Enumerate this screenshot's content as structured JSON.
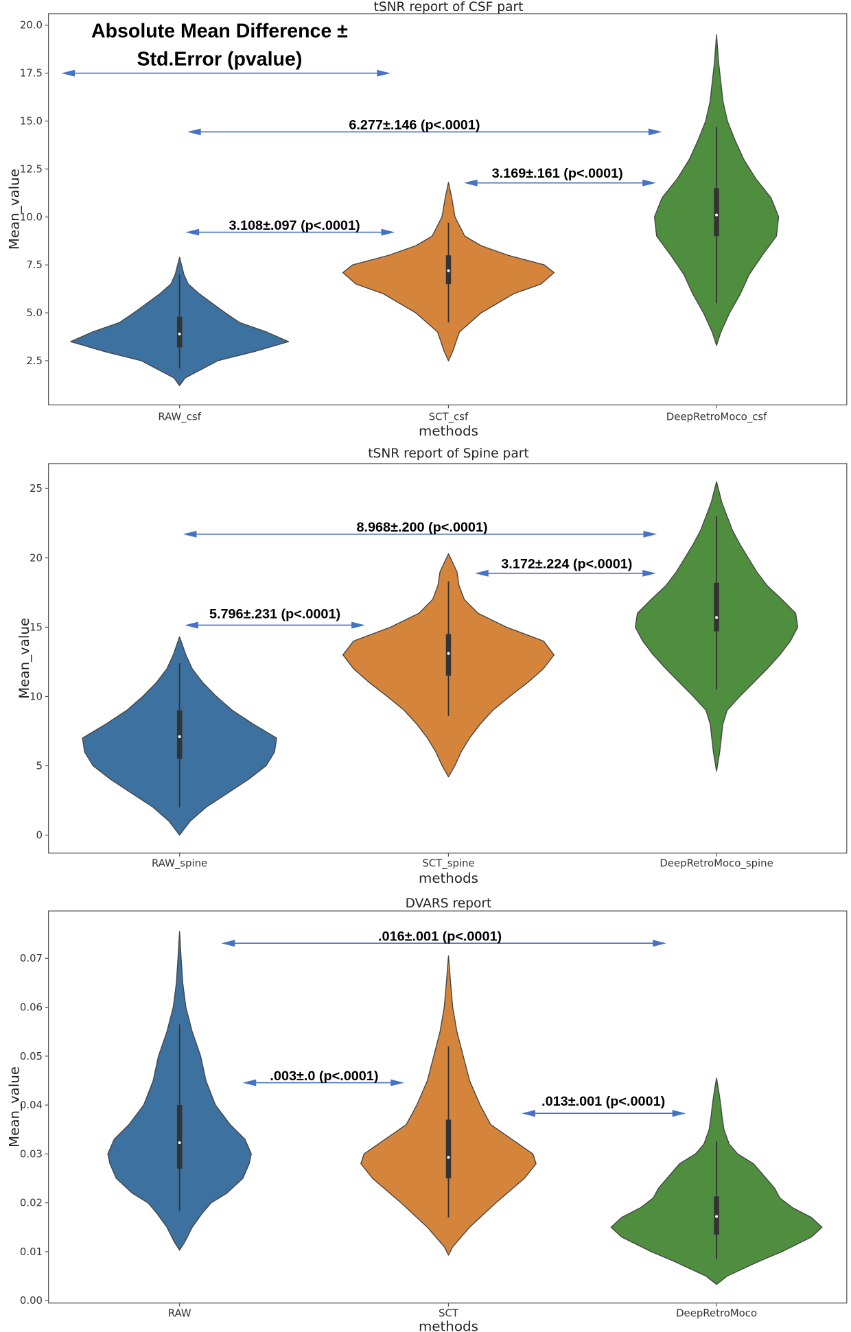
{
  "header": {
    "line1": "Absolute Mean Difference ±",
    "line2": "Std.Error (pvalue)"
  },
  "colors": {
    "violins": [
      "#3d71a0",
      "#d5843c",
      "#4e8e3e"
    ],
    "arrow": "#4472c4",
    "box": "#333333"
  },
  "chart_data": [
    {
      "type": "violin",
      "title": "tSNR report of CSF part",
      "xlabel": "methods",
      "ylabel": "Mean_value",
      "ylim": [
        0.2,
        20.6
      ],
      "ticks": [
        2.5,
        5.0,
        7.5,
        10.0,
        12.5,
        15.0,
        17.5,
        20.0
      ],
      "tick_labels": [
        "2.5",
        "5.0",
        "7.5",
        "10.0",
        "12.5",
        "15.0",
        "17.5",
        "20.0"
      ],
      "categories": [
        "RAW_csf",
        "SCT_csf",
        "DeepRetroMoco_csf"
      ],
      "violins": [
        {
          "q1": 3.2,
          "median": 3.9,
          "q3": 4.8,
          "whisker": [
            2.1,
            7.0
          ],
          "density": [
            [
              1.2,
              0
            ],
            [
              1.6,
              0.05
            ],
            [
              2.5,
              0.35
            ],
            [
              3.0,
              0.7
            ],
            [
              3.5,
              1.0
            ],
            [
              4.0,
              0.8
            ],
            [
              4.5,
              0.55
            ],
            [
              5.0,
              0.42
            ],
            [
              5.5,
              0.3
            ],
            [
              6.0,
              0.18
            ],
            [
              6.5,
              0.08
            ],
            [
              7.0,
              0.04
            ],
            [
              7.9,
              0
            ]
          ]
        },
        {
          "q1": 6.5,
          "median": 7.2,
          "q3": 8.0,
          "whisker": [
            4.5,
            9.7
          ],
          "density": [
            [
              2.5,
              0
            ],
            [
              3.0,
              0.04
            ],
            [
              4.0,
              0.1
            ],
            [
              5.0,
              0.3
            ],
            [
              6.0,
              0.6
            ],
            [
              6.5,
              0.85
            ],
            [
              7.1,
              0.97
            ],
            [
              7.5,
              0.88
            ],
            [
              8.0,
              0.55
            ],
            [
              8.5,
              0.3
            ],
            [
              9.0,
              0.15
            ],
            [
              10.0,
              0.06
            ],
            [
              11.0,
              0.03
            ],
            [
              11.8,
              0
            ]
          ]
        },
        {
          "q1": 9.0,
          "median": 10.1,
          "q3": 11.5,
          "whisker": [
            5.5,
            14.7
          ],
          "density": [
            [
              3.3,
              0
            ],
            [
              4.0,
              0.04
            ],
            [
              5.0,
              0.12
            ],
            [
              6.0,
              0.22
            ],
            [
              7.0,
              0.3
            ],
            [
              8.0,
              0.42
            ],
            [
              9.0,
              0.55
            ],
            [
              10.0,
              0.57
            ],
            [
              11.0,
              0.5
            ],
            [
              12.0,
              0.36
            ],
            [
              13.0,
              0.25
            ],
            [
              14.0,
              0.17
            ],
            [
              15.0,
              0.1
            ],
            [
              16.0,
              0.06
            ],
            [
              17.0,
              0.04
            ],
            [
              18.0,
              0.02
            ],
            [
              19.5,
              0
            ]
          ]
        }
      ],
      "annotations": [
        "6.277±.146 (p<.0001)",
        "3.169±.161 (p<.0001)",
        "3.108±.097 (p<.0001)"
      ]
    },
    {
      "type": "violin",
      "title": "tSNR report of Spine part",
      "xlabel": "methods",
      "ylabel": "Mean_value",
      "ylim": [
        -1.3,
        26.8
      ],
      "ticks": [
        0,
        5,
        10,
        15,
        20,
        25
      ],
      "tick_labels": [
        "0",
        "5",
        "10",
        "15",
        "20",
        "25"
      ],
      "categories": [
        "RAW_spine",
        "SCT_spine",
        "DeepRetroMoco_spine"
      ],
      "violins": [
        {
          "q1": 5.5,
          "median": 7.1,
          "q3": 9.0,
          "whisker": [
            2.0,
            12.4
          ],
          "density": [
            [
              0,
              0
            ],
            [
              1,
              0.1
            ],
            [
              2,
              0.25
            ],
            [
              3,
              0.45
            ],
            [
              4,
              0.65
            ],
            [
              5,
              0.82
            ],
            [
              6,
              0.9
            ],
            [
              7,
              0.92
            ],
            [
              8,
              0.7
            ],
            [
              9,
              0.5
            ],
            [
              10,
              0.35
            ],
            [
              11,
              0.22
            ],
            [
              12,
              0.12
            ],
            [
              13,
              0.06
            ],
            [
              14.3,
              0
            ]
          ]
        },
        {
          "q1": 11.5,
          "median": 13.1,
          "q3": 14.5,
          "whisker": [
            8.6,
            18.3
          ],
          "density": [
            [
              4.2,
              0
            ],
            [
              5,
              0.06
            ],
            [
              6,
              0.12
            ],
            [
              7,
              0.2
            ],
            [
              8,
              0.3
            ],
            [
              9,
              0.42
            ],
            [
              10,
              0.58
            ],
            [
              11,
              0.75
            ],
            [
              12,
              0.9
            ],
            [
              13,
              1.0
            ],
            [
              14,
              0.9
            ],
            [
              15,
              0.55
            ],
            [
              16,
              0.28
            ],
            [
              17,
              0.15
            ],
            [
              18,
              0.1
            ],
            [
              19,
              0.08
            ],
            [
              20.3,
              0
            ]
          ]
        },
        {
          "q1": 14.7,
          "median": 15.7,
          "q3": 18.2,
          "whisker": [
            10.5,
            23.0
          ],
          "density": [
            [
              4.6,
              0
            ],
            [
              6,
              0.03
            ],
            [
              8,
              0.06
            ],
            [
              9,
              0.1
            ],
            [
              10,
              0.22
            ],
            [
              11,
              0.35
            ],
            [
              12,
              0.48
            ],
            [
              13,
              0.6
            ],
            [
              14,
              0.7
            ],
            [
              15,
              0.77
            ],
            [
              16,
              0.75
            ],
            [
              17,
              0.62
            ],
            [
              18,
              0.48
            ],
            [
              19,
              0.38
            ],
            [
              20,
              0.3
            ],
            [
              21,
              0.22
            ],
            [
              22,
              0.15
            ],
            [
              23,
              0.1
            ],
            [
              24,
              0.05
            ],
            [
              25.5,
              0
            ]
          ]
        }
      ],
      "annotations": [
        "8.968±.200 (p<.0001)",
        "3.172±.224 (p<.0001)",
        "5.796±.231 (p<.0001)"
      ]
    },
    {
      "type": "violin",
      "title": "DVARS report",
      "xlabel": "methods",
      "ylabel": "Mean_value",
      "ylim": [
        -0.0005,
        0.0797
      ],
      "ticks": [
        0,
        0.01,
        0.02,
        0.03,
        0.04,
        0.05,
        0.06,
        0.07
      ],
      "tick_labels": [
        "0.00",
        "0.01",
        "0.02",
        "0.03",
        "0.04",
        "0.05",
        "0.06",
        "0.07"
      ],
      "categories": [
        "RAW",
        "SCT",
        "DeepRetroMoco"
      ],
      "violins": [
        {
          "q1": 0.027,
          "median": 0.0323,
          "q3": 0.04,
          "whisker": [
            0.0183,
            0.0565
          ],
          "density": [
            [
              0.0103,
              0
            ],
            [
              0.012,
              0.05
            ],
            [
              0.015,
              0.12
            ],
            [
              0.018,
              0.22
            ],
            [
              0.02,
              0.3
            ],
            [
              0.022,
              0.45
            ],
            [
              0.025,
              0.6
            ],
            [
              0.028,
              0.66
            ],
            [
              0.03,
              0.68
            ],
            [
              0.033,
              0.62
            ],
            [
              0.036,
              0.48
            ],
            [
              0.04,
              0.34
            ],
            [
              0.045,
              0.25
            ],
            [
              0.05,
              0.2
            ],
            [
              0.055,
              0.12
            ],
            [
              0.06,
              0.06
            ],
            [
              0.065,
              0.03
            ],
            [
              0.07,
              0.015
            ],
            [
              0.0755,
              0
            ]
          ]
        },
        {
          "q1": 0.025,
          "median": 0.0293,
          "q3": 0.037,
          "whisker": [
            0.017,
            0.052
          ],
          "density": [
            [
              0.0093,
              0
            ],
            [
              0.011,
              0.04
            ],
            [
              0.015,
              0.2
            ],
            [
              0.02,
              0.45
            ],
            [
              0.025,
              0.72
            ],
            [
              0.028,
              0.83
            ],
            [
              0.03,
              0.8
            ],
            [
              0.033,
              0.6
            ],
            [
              0.036,
              0.4
            ],
            [
              0.04,
              0.3
            ],
            [
              0.045,
              0.2
            ],
            [
              0.05,
              0.14
            ],
            [
              0.055,
              0.08
            ],
            [
              0.06,
              0.04
            ],
            [
              0.065,
              0.02
            ],
            [
              0.0705,
              0
            ]
          ]
        },
        {
          "q1": 0.0135,
          "median": 0.0172,
          "q3": 0.0213,
          "whisker": [
            0.0085,
            0.0325
          ],
          "density": [
            [
              0.0033,
              0
            ],
            [
              0.005,
              0.1
            ],
            [
              0.008,
              0.4
            ],
            [
              0.01,
              0.62
            ],
            [
              0.013,
              0.9
            ],
            [
              0.015,
              1.0
            ],
            [
              0.017,
              0.9
            ],
            [
              0.019,
              0.72
            ],
            [
              0.021,
              0.6
            ],
            [
              0.023,
              0.55
            ],
            [
              0.025,
              0.47
            ],
            [
              0.028,
              0.35
            ],
            [
              0.03,
              0.2
            ],
            [
              0.032,
              0.12
            ],
            [
              0.035,
              0.07
            ],
            [
              0.038,
              0.05
            ],
            [
              0.04,
              0.04
            ],
            [
              0.043,
              0.02
            ],
            [
              0.0455,
              0
            ]
          ]
        }
      ],
      "annotations": [
        ".016±.001 (p<.0001)",
        ".003±.0 (p<.0001)",
        ".013±.001 (p<.0001)"
      ]
    }
  ]
}
